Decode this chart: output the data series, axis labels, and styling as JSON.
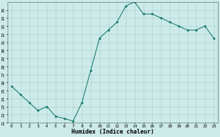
{
  "x": [
    0,
    1,
    2,
    3,
    4,
    5,
    6,
    7,
    8,
    9,
    10,
    11,
    12,
    13,
    14,
    15,
    16,
    17,
    18,
    19,
    20,
    21,
    22,
    23
  ],
  "y": [
    25.5,
    24.5,
    23.5,
    22.5,
    23.0,
    21.8,
    21.5,
    21.2,
    23.5,
    27.5,
    31.5,
    32.5,
    33.5,
    35.5,
    36.0,
    34.5,
    34.5,
    34.0,
    33.5,
    33.0,
    32.5,
    32.5,
    33.0,
    31.5
  ],
  "line_color": "#1a7a6e",
  "marker": "D",
  "marker_size": 1.8,
  "bg_color": "#cceae8",
  "grid_color": "#aad4d0",
  "xlabel": "Humidex (Indice chaleur)",
  "ylim": [
    21,
    36
  ],
  "xlim": [
    -0.5,
    23.5
  ],
  "yticks": [
    21,
    22,
    23,
    24,
    25,
    26,
    27,
    28,
    29,
    30,
    31,
    32,
    33,
    34,
    35
  ],
  "xticks": [
    0,
    1,
    2,
    3,
    4,
    5,
    6,
    7,
    8,
    9,
    10,
    11,
    12,
    13,
    14,
    15,
    16,
    17,
    18,
    19,
    20,
    21,
    22,
    23
  ],
  "tick_fontsize": 4.5,
  "label_fontsize": 6.0,
  "line_width": 0.8
}
